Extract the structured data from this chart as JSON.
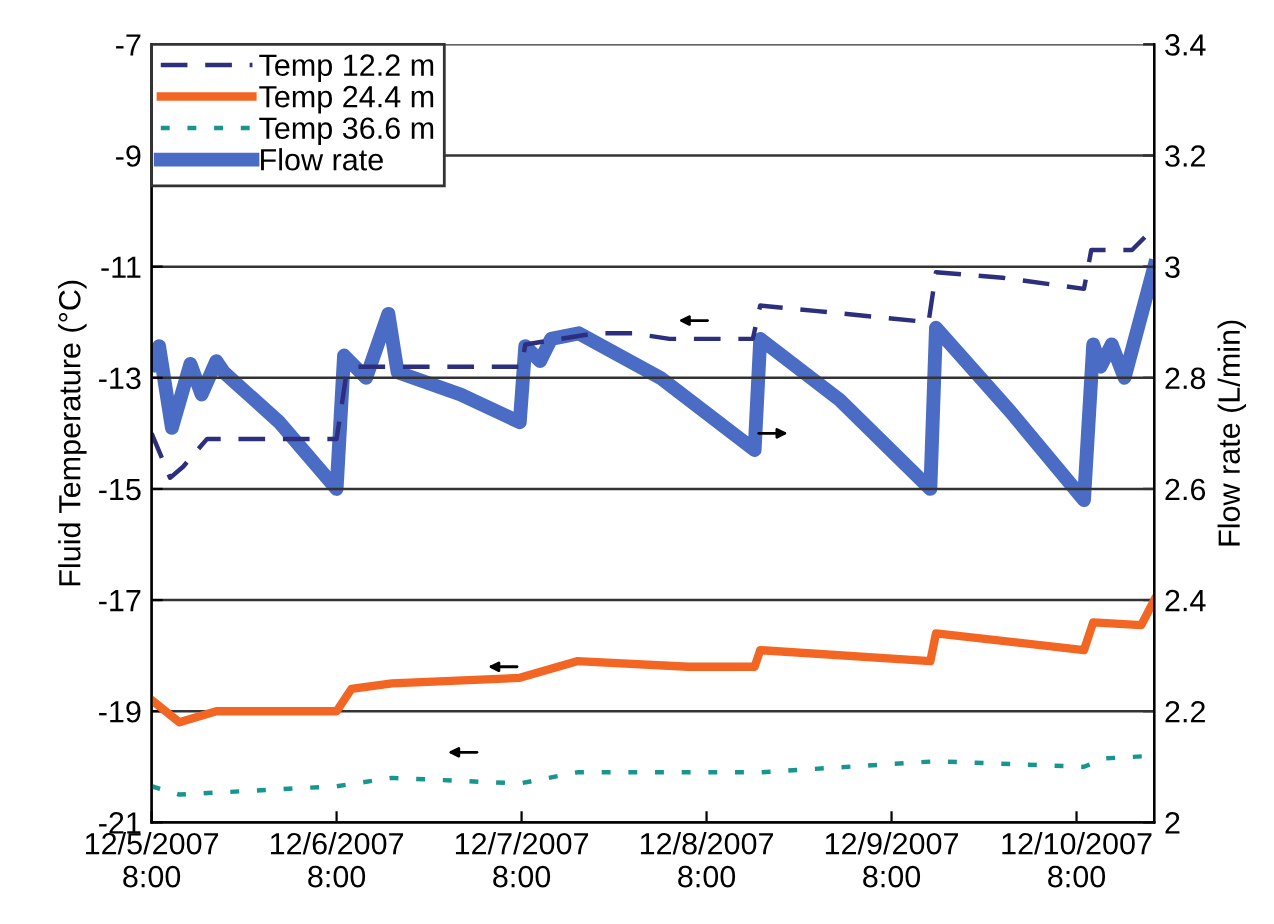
{
  "chart_data": {
    "type": "line",
    "ylabel": "Fluid Temperature (°C)",
    "y2label": "Flow rate (L/min)",
    "xlim": [
      "2007-12-05T08:00",
      "2007-12-10T18:05"
    ],
    "xticks": [
      {
        "value": "2007-12-05T08:00",
        "label": "12/5/2007\n8:00"
      },
      {
        "value": "2007-12-06T08:00",
        "label": "12/6/2007\n8:00"
      },
      {
        "value": "2007-12-07T08:00",
        "label": "12/7/2007\n8:00"
      },
      {
        "value": "2007-12-08T08:00",
        "label": "12/8/2007\n8:00"
      },
      {
        "value": "2007-12-09T08:00",
        "label": "12/9/2007\n8:00"
      },
      {
        "value": "2007-12-10T08:00",
        "label": "12/10/2007\n8:00"
      }
    ],
    "ylim": [
      -21,
      -7
    ],
    "yticks": [
      -21,
      -19,
      -17,
      -15,
      -13,
      -11,
      -9,
      -7
    ],
    "y2lim": [
      2,
      3.4
    ],
    "y2ticks": [
      2,
      2.2,
      2.4,
      2.6,
      2.8,
      3,
      3.2,
      3.4
    ],
    "grid": "y",
    "legend": "top left",
    "series": [
      {
        "name": "Temp 12.2 m",
        "color": "#2b2f7e",
        "line_style": "dashed",
        "x": [
          "2007-12-05T08:00",
          "2007-12-05T10:24",
          "2007-12-05T12:05",
          "2007-12-05T15:12",
          "2007-12-06T08:00",
          "2007-12-06T09:12",
          "2007-12-06T10:24",
          "2007-12-07T08:00",
          "2007-12-07T08:29",
          "2007-12-07T17:36",
          "2007-12-07T22:24",
          "2007-12-08T03:12",
          "2007-12-08T14:00",
          "2007-12-08T14:58",
          "2007-12-08T22:24",
          "2007-12-09T12:48",
          "2007-12-09T13:46",
          "2007-12-09T22:24",
          "2007-12-10T08:58",
          "2007-12-10T09:55",
          "2007-12-10T15:12",
          "2007-12-10T18:05"
        ],
        "values": [
          -14.0,
          -14.8,
          -14.6,
          -14.1,
          -14.1,
          -13.0,
          -12.8,
          -12.8,
          -12.4,
          -12.2,
          -12.2,
          -12.3,
          -12.3,
          -11.7,
          -11.8,
          -12.0,
          -11.1,
          -11.2,
          -11.4,
          -10.7,
          -10.7,
          -10.3
        ]
      },
      {
        "name": "Temp 24.4 m",
        "color": "#f26522",
        "line_style": "solid",
        "x": [
          "2007-12-05T08:00",
          "2007-12-05T11:36",
          "2007-12-05T16:24",
          "2007-12-06T08:00",
          "2007-12-06T09:55",
          "2007-12-06T15:12",
          "2007-12-07T07:46",
          "2007-12-07T15:12",
          "2007-12-08T05:36",
          "2007-12-08T14:14",
          "2007-12-08T14:58",
          "2007-12-09T13:02",
          "2007-12-09T13:46",
          "2007-12-10T08:58",
          "2007-12-10T10:10",
          "2007-12-10T16:24",
          "2007-12-10T18:05"
        ],
        "values": [
          -18.8,
          -19.2,
          -19.0,
          -19.0,
          -18.6,
          -18.5,
          -18.4,
          -18.1,
          -18.2,
          -18.2,
          -17.9,
          -18.1,
          -17.6,
          -17.9,
          -17.4,
          -17.45,
          -17.0
        ]
      },
      {
        "name": "Temp 36.6 m",
        "color": "#17968f",
        "line_style": "dotted",
        "x": [
          "2007-12-05T08:00",
          "2007-12-05T11:36",
          "2007-12-06T08:00",
          "2007-12-06T15:12",
          "2007-12-07T07:46",
          "2007-12-07T15:12",
          "2007-12-08T14:58",
          "2007-12-09T13:46",
          "2007-12-10T08:58",
          "2007-12-10T11:36",
          "2007-12-10T18:05"
        ],
        "values": [
          -20.35,
          -20.5,
          -20.35,
          -20.2,
          -20.3,
          -20.1,
          -20.1,
          -19.9,
          -20.0,
          -19.85,
          -19.8
        ]
      },
      {
        "name": "Flow rate",
        "color": "#4a6cc4",
        "line_style": "solid",
        "axis": "y2",
        "x": [
          "2007-12-05T08:00",
          "2007-12-05T08:58",
          "2007-12-05T10:38",
          "2007-12-05T13:02",
          "2007-12-05T14:29",
          "2007-12-05T16:24",
          "2007-12-05T17:22",
          "2007-12-06T00:34",
          "2007-12-06T08:00",
          "2007-12-06T08:58",
          "2007-12-06T11:50",
          "2007-12-06T14:43",
          "2007-12-06T15:55",
          "2007-12-07T00:05",
          "2007-12-07T07:46",
          "2007-12-07T08:29",
          "2007-12-07T10:24",
          "2007-12-07T11:50",
          "2007-12-07T15:26",
          "2007-12-08T02:00",
          "2007-12-08T14:14",
          "2007-12-08T14:58",
          "2007-12-09T01:17",
          "2007-12-09T13:02",
          "2007-12-09T13:46",
          "2007-12-09T23:22",
          "2007-12-10T08:58",
          "2007-12-10T10:10",
          "2007-12-10T11:07",
          "2007-12-10T12:34",
          "2007-12-10T14:14",
          "2007-12-10T18:05"
        ],
        "values": [
          2.825,
          2.857,
          2.71,
          2.825,
          2.77,
          2.83,
          2.81,
          2.72,
          2.6,
          2.84,
          2.8,
          2.915,
          2.81,
          2.77,
          2.72,
          2.857,
          2.83,
          2.87,
          2.88,
          2.8,
          2.67,
          2.87,
          2.76,
          2.6,
          2.89,
          2.74,
          2.58,
          2.86,
          2.82,
          2.86,
          2.8,
          3.0
        ]
      }
    ]
  }
}
